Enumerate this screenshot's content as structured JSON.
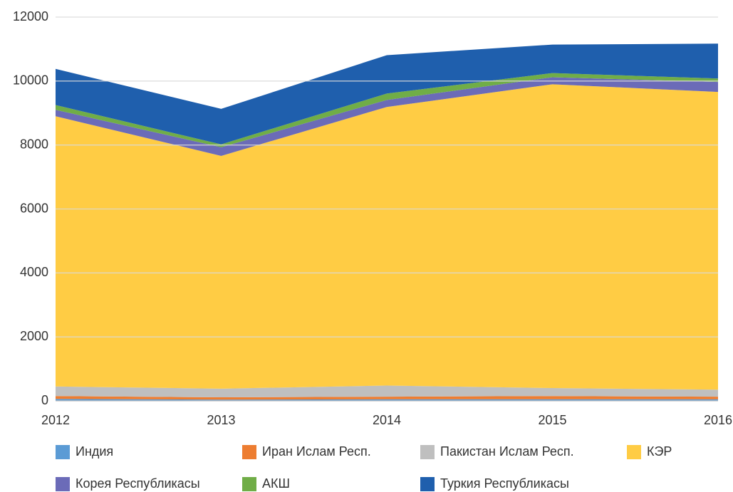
{
  "chart_data": {
    "type": "stacked_area",
    "categories": [
      "2012",
      "2013",
      "2014",
      "2015",
      "2016"
    ],
    "series": [
      {
        "name": "Индия",
        "color": "#5b9bd5",
        "values": [
          60,
          40,
          50,
          50,
          50
        ]
      },
      {
        "name": "Иран Ислам Респ.",
        "color": "#ed7d31",
        "values": [
          90,
          70,
          80,
          100,
          80
        ]
      },
      {
        "name": "Пакистан Ислам Респ.",
        "color": "#bfbfbf",
        "values": [
          300,
          270,
          350,
          250,
          220
        ]
      },
      {
        "name": "КЭР",
        "color": "#ffcc44",
        "values": [
          8450,
          7280,
          8710,
          9500,
          9310
        ]
      },
      {
        "name": "Корея Республикасы",
        "color": "#6b6bb8",
        "values": [
          200,
          270,
          220,
          220,
          310
        ]
      },
      {
        "name": "АКШ",
        "color": "#70ad47",
        "values": [
          150,
          90,
          200,
          130,
          110
        ]
      },
      {
        "name": "Туркия Республикасы",
        "color": "#1f5fad",
        "values": [
          1130,
          1110,
          1200,
          890,
          1090
        ]
      }
    ],
    "ylim": [
      0,
      12000
    ],
    "yticks": [
      0,
      2000,
      4000,
      6000,
      8000,
      10000,
      12000
    ],
    "grid": true
  }
}
